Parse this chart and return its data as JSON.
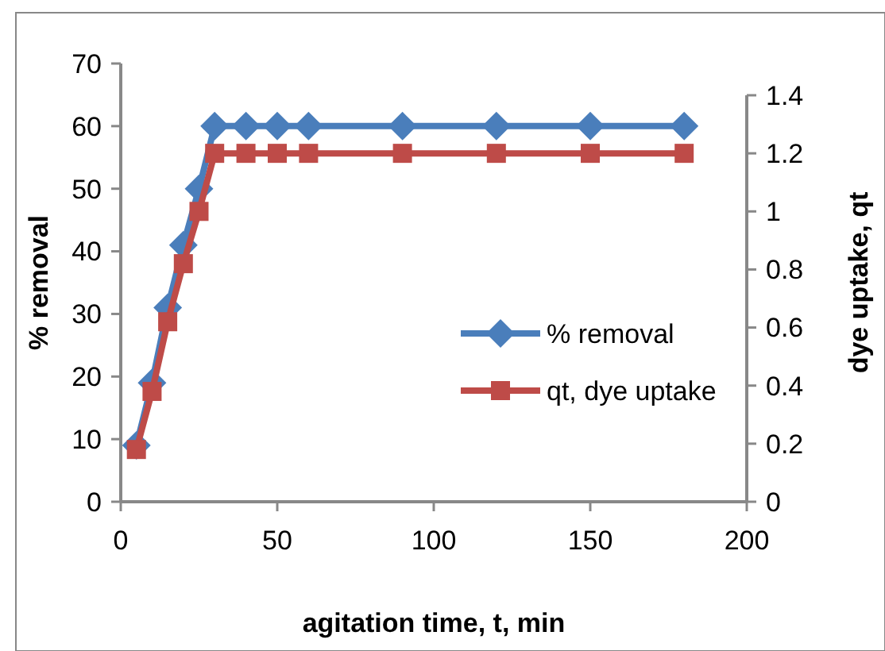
{
  "chart_data": {
    "type": "line",
    "xlabel": "agitation time, t, min",
    "ylabel": "% removal",
    "y2label": "dye uptake, qt",
    "x": [
      5,
      10,
      15,
      20,
      25,
      30,
      40,
      50,
      60,
      90,
      120,
      150,
      180
    ],
    "series": [
      {
        "name": "% removal",
        "color": "#4a7ebb",
        "marker": "diamond",
        "values": [
          9,
          19,
          31,
          41,
          50,
          60,
          60,
          60,
          60,
          60,
          60,
          60,
          60
        ]
      },
      {
        "name": "qt, dye uptake",
        "color": "#be4b48",
        "marker": "square",
        "axis": "y2",
        "values": [
          0.18,
          0.38,
          0.62,
          0.82,
          1.0,
          1.2,
          1.2,
          1.2,
          1.2,
          1.2,
          1.2,
          1.2,
          1.2
        ]
      }
    ],
    "xlim": [
      0,
      200
    ],
    "xticks": [
      0,
      50,
      100,
      150,
      200
    ],
    "ylim": [
      0,
      70
    ],
    "yticks": [
      0,
      10,
      20,
      30,
      40,
      50,
      60,
      70
    ],
    "y2lim": [
      0,
      1.4
    ],
    "y2ticks": [
      0,
      0.2,
      0.4,
      0.6,
      0.8,
      1,
      1.2,
      1.4
    ],
    "legend": "right",
    "grid": false
  }
}
